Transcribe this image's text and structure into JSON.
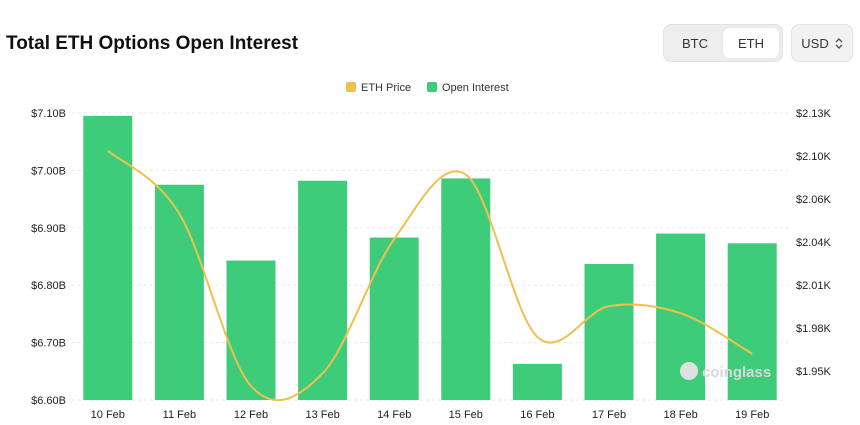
{
  "header": {
    "title": "Total ETH Options Open Interest",
    "asset_tabs": [
      {
        "label": "BTC",
        "active": false
      },
      {
        "label": "ETH",
        "active": true
      }
    ],
    "currency": {
      "label": "USD",
      "icon": "chevron-up-down-icon"
    }
  },
  "watermark": "coinglass",
  "colors": {
    "bar": "#3ecc7b",
    "line": "#f0c04e",
    "grid": "#e8e8e8"
  },
  "chart_data": {
    "type": "bar",
    "categories": [
      "10 Feb",
      "11 Feb",
      "12 Feb",
      "13 Feb",
      "14 Feb",
      "15 Feb",
      "16 Feb",
      "17 Feb",
      "18 Feb",
      "19 Feb"
    ],
    "series": [
      {
        "name": "Open Interest",
        "type": "bar",
        "axis": "left",
        "values": [
          7.095,
          6.975,
          6.843,
          6.982,
          6.883,
          6.986,
          6.663,
          6.837,
          6.89,
          6.873
        ]
      },
      {
        "name": "ETH Price",
        "type": "line",
        "axis": "right",
        "values": [
          2.103,
          2.058,
          1.935,
          1.944,
          2.04,
          2.086,
          1.97,
          1.992,
          1.987,
          1.958
        ]
      }
    ],
    "legend": [
      "ETH Price",
      "Open Interest"
    ],
    "legend_position": "top-center",
    "y_left": {
      "ticks": [
        "$6.60B",
        "$6.70B",
        "$6.80B",
        "$6.90B",
        "$7.00B",
        "$7.10B"
      ],
      "range": [
        6.6,
        7.1
      ]
    },
    "y_right": {
      "ticks": [
        "$1.95K",
        "$1.98K",
        "$2.01K",
        "$2.04K",
        "$2.06K",
        "$2.10K",
        "$2.13K"
      ],
      "range": [
        1.925,
        2.13
      ]
    },
    "grid": true
  }
}
